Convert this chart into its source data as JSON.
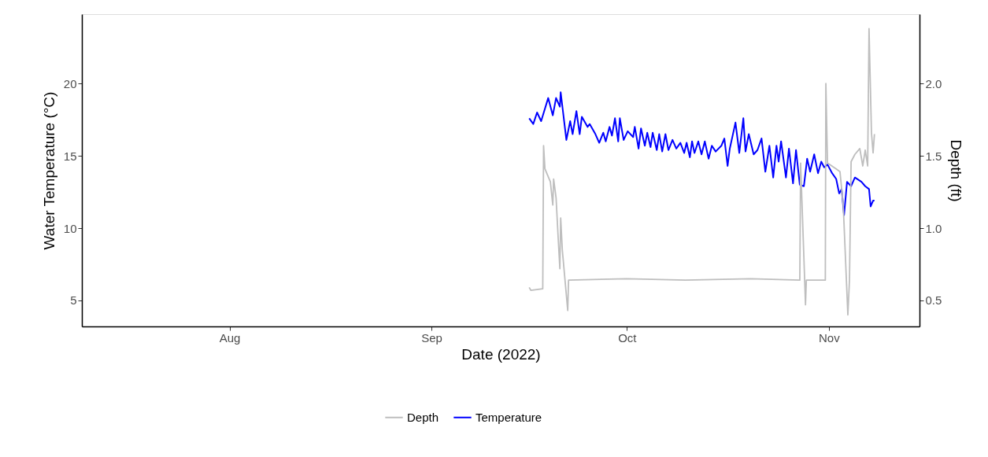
{
  "chart_data": {
    "type": "line",
    "xlabel": "Date (2022)",
    "ylabel": "Water Temperature (°C)",
    "y2label": "Depth (ft)",
    "xlim": [
      "2022-07-09T08:00",
      "2022-11-14T22:00"
    ],
    "xticks": [
      {
        "value": "2022-08-01",
        "label": "Aug"
      },
      {
        "value": "2022-09-01",
        "label": "Sep"
      },
      {
        "value": "2022-10-01",
        "label": "Oct"
      },
      {
        "value": "2022-11-01",
        "label": "Nov"
      }
    ],
    "ylim": [
      3.2,
      24.8
    ],
    "yticks": [
      5,
      10,
      15,
      20
    ],
    "y2lim": [
      0.32,
      2.48
    ],
    "y2ticks": [
      {
        "value": 0.5,
        "label": "0.5"
      },
      {
        "value": 1,
        "label": "1.0"
      },
      {
        "value": 1.5,
        "label": "1.5"
      },
      {
        "value": 2,
        "label": "2.0"
      }
    ],
    "grid": false,
    "legend": "bottom",
    "marker": "none",
    "line_style": "solid",
    "series": [
      {
        "name": "Depth",
        "color": "#bebebe",
        "axis": "y2",
        "x": [
          "2022-09-16T00:00",
          "2022-09-16T06:00",
          "2022-09-18T02:00",
          "2022-09-18T05:00",
          "2022-09-18T10:00",
          "2022-09-19T06:00",
          "2022-09-19T15:00",
          "2022-09-19T18:00",
          "2022-09-20T03:00",
          "2022-09-20T12:00",
          "2022-09-20T17:00",
          "2022-09-20T20:00",
          "2022-09-21T02:00",
          "2022-09-21T22:00",
          "2022-09-22T01:00",
          "2022-10-01T00:00",
          "2022-10-10T00:00",
          "2022-10-20T00:00",
          "2022-10-27T13:00",
          "2022-10-27T16:00",
          "2022-10-28T10:00",
          "2022-10-28T13:00",
          "2022-10-31T11:00",
          "2022-10-31T13:00",
          "2022-10-31T19:00",
          "2022-11-02T03:00",
          "2022-11-02T17:00",
          "2022-11-03T05:00",
          "2022-11-03T22:00",
          "2022-11-04T04:00",
          "2022-11-04T10:00",
          "2022-11-05T00:00",
          "2022-11-05T18:00",
          "2022-11-06T05:00",
          "2022-11-06T14:00",
          "2022-11-06T23:00",
          "2022-11-07T04:00",
          "2022-11-07T13:00",
          "2022-11-07T19:00",
          "2022-11-08T00:00"
        ],
        "values": [
          0.59,
          0.57,
          0.58,
          1.57,
          1.41,
          1.32,
          1.16,
          1.34,
          1.21,
          0.89,
          0.72,
          1.07,
          0.85,
          0.43,
          0.64,
          0.65,
          0.64,
          0.65,
          0.64,
          1.45,
          0.47,
          0.64,
          0.64,
          2.0,
          1.45,
          1.41,
          1.39,
          1.16,
          0.4,
          0.64,
          1.46,
          1.51,
          1.55,
          1.43,
          1.54,
          1.43,
          2.38,
          1.66,
          1.52,
          1.65
        ]
      },
      {
        "name": "Temperature",
        "color": "#0000ff",
        "axis": "y",
        "x": [
          "2022-09-16T00:00",
          "2022-09-16T15:00",
          "2022-09-17T05:00",
          "2022-09-17T20:00",
          "2022-09-18T22:00",
          "2022-09-19T15:00",
          "2022-09-20T03:00",
          "2022-09-20T17:00",
          "2022-09-20T20:00",
          "2022-09-21T17:00",
          "2022-09-22T07:00",
          "2022-09-22T16:00",
          "2022-09-23T06:00",
          "2022-09-23T18:00",
          "2022-09-24T02:00",
          "2022-09-24T23:00",
          "2022-09-25T07:00",
          "2022-09-26T04:00",
          "2022-09-26T18:00",
          "2022-09-27T09:00",
          "2022-09-27T18:00",
          "2022-09-28T08:00",
          "2022-09-28T17:00",
          "2022-09-29T04:00",
          "2022-09-29T16:00",
          "2022-09-29T22:00",
          "2022-09-30T12:00",
          "2022-10-01T03:00",
          "2022-10-01T23:00",
          "2022-10-02T05:00",
          "2022-10-02T19:00",
          "2022-10-03T04:00",
          "2022-10-03T18:00",
          "2022-10-04T03:00",
          "2022-10-04T15:00",
          "2022-10-04T23:00",
          "2022-10-05T14:00",
          "2022-10-05T23:00",
          "2022-10-06T10:00",
          "2022-10-06T22:00",
          "2022-10-07T09:00",
          "2022-10-08T00:00",
          "2022-10-08T14:00",
          "2022-10-09T05:00",
          "2022-10-09T19:00",
          "2022-10-10T04:00",
          "2022-10-10T16:00",
          "2022-10-11T00:00",
          "2022-10-11T09:00",
          "2022-10-11T23:00",
          "2022-10-12T11:00",
          "2022-10-12T23:00",
          "2022-10-13T13:00",
          "2022-10-14T01:00",
          "2022-10-14T15:00",
          "2022-10-15T12:00",
          "2022-10-15T23:00",
          "2022-10-16T11:00",
          "2022-10-16T19:00",
          "2022-10-17T16:00",
          "2022-10-18T06:00",
          "2022-10-18T21:00",
          "2022-10-19T05:00",
          "2022-10-19T17:00",
          "2022-10-20T11:00",
          "2022-10-21T01:00",
          "2022-10-21T16:00",
          "2022-10-22T06:00",
          "2022-10-22T21:00",
          "2022-10-23T11:00",
          "2022-10-23T23:00",
          "2022-10-24T07:00",
          "2022-10-24T16:00",
          "2022-10-25T10:00",
          "2022-10-25T21:00",
          "2022-10-26T12:00",
          "2022-10-26T23:00",
          "2022-10-27T13:00",
          "2022-10-28T04:00",
          "2022-10-28T16:00",
          "2022-10-29T03:00",
          "2022-10-29T18:00",
          "2022-10-30T08:00",
          "2022-10-30T20:00",
          "2022-10-31T07:00",
          "2022-10-31T19:00",
          "2022-11-01T12:00",
          "2022-11-02T03:00",
          "2022-11-02T14:00",
          "2022-11-02T23:00",
          "2022-11-03T08:00",
          "2022-11-03T19:00",
          "2022-11-04T10:00",
          "2022-11-05T00:00",
          "2022-11-06T00:00",
          "2022-11-06T14:00",
          "2022-11-07T04:00",
          "2022-11-07T10:00",
          "2022-11-07T19:00",
          "2022-11-08T00:00"
        ],
        "values": [
          17.6,
          17.2,
          18.0,
          17.4,
          19.0,
          17.8,
          19.0,
          18.4,
          19.4,
          16.1,
          17.4,
          16.5,
          18.1,
          16.5,
          17.7,
          17.0,
          17.2,
          16.5,
          15.9,
          16.6,
          16.0,
          17.0,
          16.4,
          17.6,
          16.0,
          17.6,
          16.1,
          16.7,
          16.3,
          17.0,
          15.5,
          16.9,
          15.7,
          16.6,
          15.6,
          16.6,
          15.4,
          16.5,
          15.3,
          16.5,
          15.4,
          16.1,
          15.5,
          15.9,
          15.2,
          15.9,
          14.9,
          16.0,
          15.2,
          16.0,
          15.1,
          16.0,
          14.8,
          15.7,
          15.3,
          15.7,
          16.2,
          14.3,
          15.5,
          17.3,
          15.2,
          17.6,
          15.3,
          16.5,
          15.1,
          15.4,
          16.2,
          13.9,
          15.7,
          13.5,
          15.7,
          14.6,
          16.0,
          13.5,
          15.5,
          13.1,
          15.4,
          13.0,
          12.9,
          14.8,
          13.9,
          15.1,
          13.8,
          14.6,
          14.2,
          14.4,
          13.8,
          13.4,
          12.4,
          12.7,
          10.9,
          13.2,
          12.9,
          13.5,
          13.2,
          12.9,
          12.7,
          11.5,
          11.9,
          11.9
        ]
      }
    ]
  }
}
